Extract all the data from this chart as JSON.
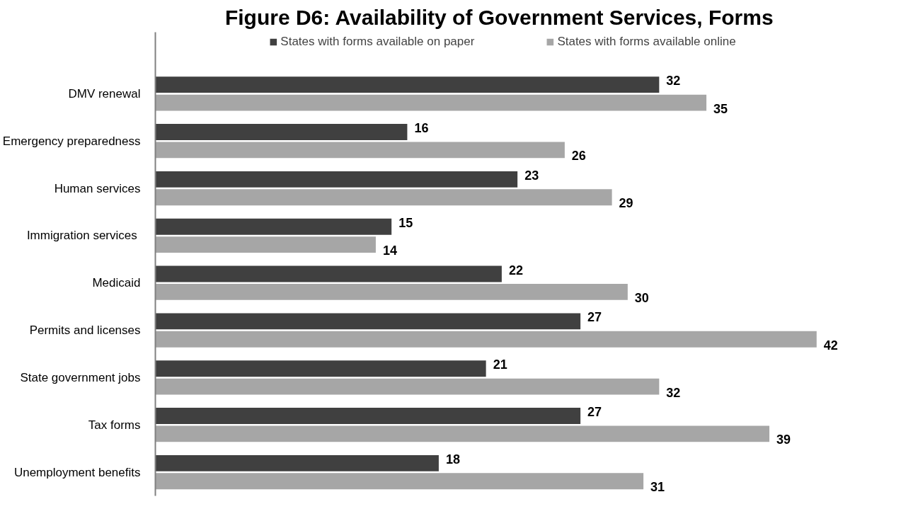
{
  "chart_data": {
    "type": "bar",
    "orientation": "horizontal",
    "title": "Figure D6: Availability  of Government Services, Forms",
    "categories": [
      "DMV renewal",
      "Emergency preparedness",
      "Human services",
      "Immigration  services",
      "Medicaid",
      "Permits and licenses",
      "State government jobs",
      "Tax forms",
      "Unemployment benefits"
    ],
    "series": [
      {
        "name": "States with forms available on paper",
        "color": "#404040",
        "values": [
          32,
          16,
          23,
          15,
          22,
          27,
          21,
          27,
          18
        ]
      },
      {
        "name": "States with forms available online",
        "color": "#a6a6a6",
        "values": [
          35,
          26,
          29,
          14,
          30,
          42,
          32,
          39,
          31
        ]
      }
    ],
    "data_labels": true,
    "legend": "top",
    "grid": false,
    "tick_labels": "y"
  }
}
